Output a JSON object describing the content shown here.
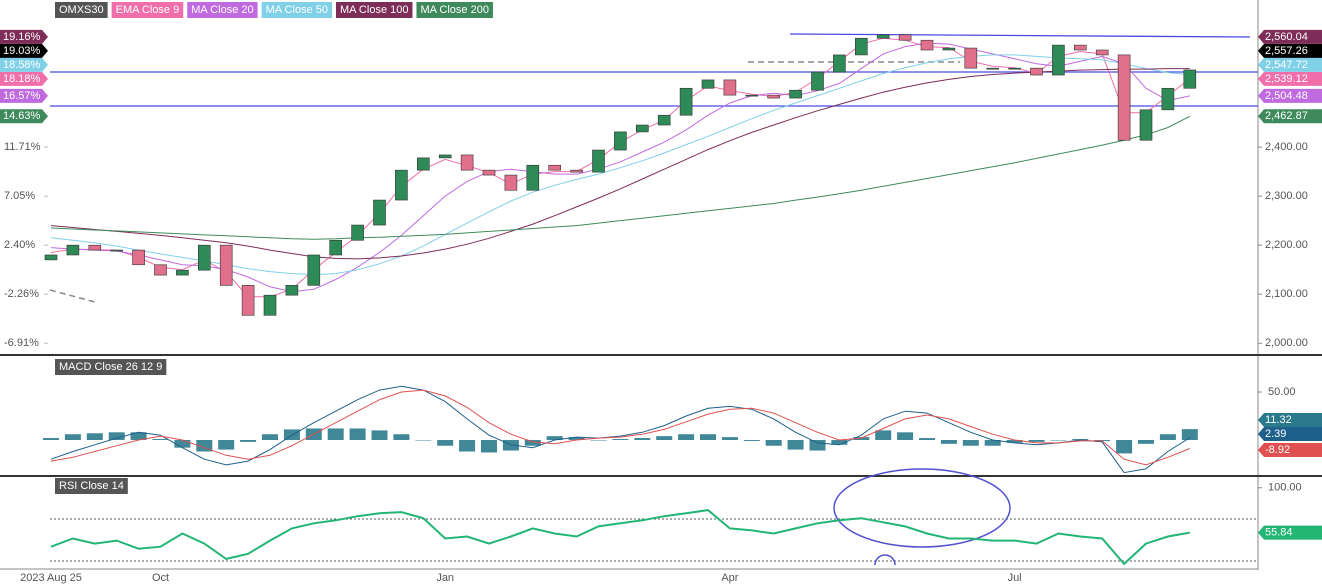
{
  "chart_data": [
    {
      "type": "candlestick",
      "name": "OMXS30",
      "categories": [
        "2023 Aug 25",
        null,
        null,
        null,
        null,
        "Oct",
        null,
        null,
        null,
        null,
        null,
        null,
        null,
        null,
        null,
        null,
        null,
        null,
        "Jan",
        null,
        null,
        null,
        null,
        null,
        null,
        null,
        null,
        null,
        null,
        null,
        null,
        "Apr",
        null,
        null,
        null,
        null,
        null,
        null,
        null,
        null,
        null,
        null,
        null,
        null,
        "Jul",
        null,
        null,
        null,
        null,
        null,
        null,
        null,
        null
      ],
      "open": [
        2170,
        2180,
        2200,
        2190,
        2190,
        2160,
        2139,
        2149,
        2200,
        2118,
        2057,
        2098,
        2118,
        2180,
        2210,
        2241,
        2292,
        2353,
        2378,
        2384,
        2353,
        2343,
        2312,
        2363,
        2353,
        2349,
        2394,
        2431,
        2445,
        2465,
        2520,
        2537,
        2506,
        2506,
        2500,
        2516,
        2553,
        2588,
        2622,
        2629,
        2618,
        2598,
        2602,
        2561,
        2561,
        2561,
        2547,
        2608,
        2598,
        2588,
        2414,
        2476,
        2520
      ],
      "close": [
        2180,
        2200,
        2190,
        2190,
        2160,
        2139,
        2149,
        2200,
        2118,
        2057,
        2098,
        2118,
        2180,
        2210,
        2241,
        2292,
        2353,
        2378,
        2384,
        2353,
        2343,
        2312,
        2363,
        2353,
        2349,
        2394,
        2431,
        2445,
        2465,
        2520,
        2537,
        2506,
        2506,
        2500,
        2516,
        2553,
        2588,
        2622,
        2629,
        2618,
        2598,
        2602,
        2561,
        2561,
        2561,
        2547,
        2608,
        2598,
        2588,
        2414,
        2476,
        2520,
        2557.26
      ],
      "up_color": "#2e8b57",
      "down_color": "#e0708c",
      "color": "#000000",
      "last_label": "2,557.26",
      "pct_label": "19.03%",
      "ylim": [
        1976,
        2700
      ],
      "yticks": [
        {
          "value": 2400,
          "label": "2,400.00"
        },
        {
          "value": 2300,
          "label": "2,300.00"
        },
        {
          "value": 2200,
          "label": "2,200.00"
        },
        {
          "value": 2100,
          "label": "2,100.00"
        },
        {
          "value": 2000,
          "label": "2,000.00"
        }
      ],
      "left_axis": {
        "lim": [
          -8.03,
          25.67
        ],
        "ticks": [
          {
            "value": 11.71,
            "label": "11.71%"
          },
          {
            "value": 7.05,
            "label": "7.05%"
          },
          {
            "value": 2.4,
            "label": "2.40%"
          },
          {
            "value": -2.26,
            "label": "-2.26%"
          },
          {
            "value": -6.91,
            "label": "-6.91%"
          }
        ]
      },
      "overlays": [
        {
          "name": "EMA Close 9",
          "color": "#f06ea9",
          "last_label": "2,539.12",
          "pct_label": "18.18%",
          "values": [
            2185,
            2192,
            2191,
            2190,
            2175,
            2155,
            2150,
            2170,
            2145,
            2095,
            2095,
            2110,
            2150,
            2185,
            2220,
            2265,
            2320,
            2355,
            2375,
            2362,
            2348,
            2325,
            2345,
            2350,
            2350,
            2375,
            2410,
            2435,
            2455,
            2495,
            2525,
            2515,
            2508,
            2503,
            2512,
            2540,
            2575,
            2610,
            2622,
            2618,
            2605,
            2603,
            2575,
            2565,
            2562,
            2550,
            2585,
            2595,
            2590,
            2470,
            2470,
            2505,
            2539.12
          ]
        },
        {
          "name": "MA Close 20",
          "color": "#c06ae0",
          "last_label": "2,504.48",
          "pct_label": "16.57%",
          "values": [
            2195,
            2192,
            2190,
            2188,
            2180,
            2170,
            2160,
            2158,
            2150,
            2135,
            2115,
            2105,
            2110,
            2130,
            2155,
            2185,
            2220,
            2260,
            2300,
            2330,
            2350,
            2355,
            2350,
            2345,
            2345,
            2355,
            2370,
            2390,
            2410,
            2435,
            2465,
            2490,
            2505,
            2510,
            2505,
            2515,
            2530,
            2560,
            2590,
            2605,
            2612,
            2610,
            2600,
            2590,
            2580,
            2570,
            2565,
            2575,
            2585,
            2570,
            2520,
            2495,
            2504.48
          ]
        },
        {
          "name": "MA Close 50",
          "color": "#80d0e8",
          "last_label": "2,547.72",
          "pct_label": "18.58%",
          "values": [
            2215,
            2210,
            2205,
            2198,
            2190,
            2182,
            2175,
            2168,
            2160,
            2152,
            2146,
            2142,
            2140,
            2142,
            2150,
            2162,
            2178,
            2198,
            2222,
            2245,
            2268,
            2290,
            2308,
            2322,
            2334,
            2345,
            2358,
            2372,
            2388,
            2405,
            2422,
            2440,
            2458,
            2475,
            2490,
            2505,
            2520,
            2535,
            2550,
            2562,
            2572,
            2580,
            2585,
            2588,
            2588,
            2585,
            2582,
            2580,
            2578,
            2570,
            2560,
            2552,
            2547.72
          ]
        },
        {
          "name": "MA Close 100",
          "color": "#7e2c58",
          "last_label": "2,560.04",
          "pct_label": "19.16%",
          "values": [
            2240,
            2236,
            2232,
            2228,
            2224,
            2220,
            2215,
            2210,
            2205,
            2198,
            2190,
            2183,
            2176,
            2173,
            2172,
            2174,
            2178,
            2184,
            2192,
            2202,
            2214,
            2228,
            2243,
            2260,
            2278,
            2296,
            2315,
            2335,
            2355,
            2375,
            2395,
            2413,
            2430,
            2445,
            2460,
            2474,
            2487,
            2500,
            2512,
            2522,
            2531,
            2538,
            2544,
            2548,
            2551,
            2553,
            2555,
            2557,
            2558,
            2559,
            2559,
            2560,
            2560.04
          ]
        },
        {
          "name": "MA Close 200",
          "color": "#3f8a5c",
          "last_label": "2,462.87",
          "pct_label": "14.63%",
          "values": [
            2235,
            2233,
            2231,
            2229,
            2227,
            2225,
            2223,
            2221,
            2219,
            2217,
            2215,
            2213,
            2212,
            2213,
            2215,
            2216,
            2218,
            2220,
            2222,
            2225,
            2228,
            2231,
            2234,
            2237,
            2240,
            2245,
            2250,
            2255,
            2260,
            2265,
            2270,
            2275,
            2280,
            2285,
            2292,
            2298,
            2305,
            2312,
            2320,
            2328,
            2336,
            2344,
            2352,
            2360,
            2368,
            2377,
            2386,
            2395,
            2404,
            2414,
            2425,
            2440,
            2462.87
          ]
        }
      ]
    },
    {
      "type": "macd",
      "title": "MACD Close 26 12 9",
      "ylim": [
        -36.5,
        86.5
      ],
      "yticks": [
        {
          "value": 50,
          "label": "50.00"
        }
      ],
      "histogram": {
        "color": "#2b7a8c",
        "values": [
          2,
          6,
          7,
          8,
          8,
          1,
          -8,
          -12,
          -10,
          -2,
          6,
          11,
          12,
          12,
          12,
          10,
          6,
          0,
          -6,
          -12,
          -13,
          -11,
          -6,
          4,
          3,
          0,
          1,
          2,
          4,
          6,
          6,
          3,
          -1,
          -6,
          -10,
          -11,
          -5,
          3,
          10,
          8,
          2,
          -4,
          -6,
          -6,
          -3,
          -2,
          0,
          1,
          -1,
          -14,
          -4,
          6,
          11.32
        ]
      },
      "series": [
        {
          "color": "#1f5f8b",
          "values": [
            -20,
            -12,
            -5,
            2,
            8,
            5,
            -8,
            -20,
            -26,
            -22,
            -10,
            5,
            18,
            30,
            42,
            52,
            56,
            52,
            40,
            22,
            5,
            -5,
            -8,
            0,
            3,
            2,
            4,
            8,
            15,
            25,
            33,
            35,
            32,
            22,
            8,
            -3,
            -5,
            5,
            22,
            30,
            28,
            18,
            8,
            0,
            -3,
            -5,
            -3,
            0,
            -2,
            -34,
            -30,
            -12,
            2.39
          ]
        },
        {
          "color": "#e05050",
          "values": [
            -22,
            -18,
            -12,
            -6,
            0,
            4,
            0,
            -8,
            -16,
            -20,
            -16,
            -6,
            6,
            18,
            30,
            42,
            50,
            52,
            46,
            34,
            18,
            6,
            -2,
            -4,
            0,
            2,
            3,
            6,
            11,
            19,
            27,
            32,
            33,
            28,
            18,
            8,
            0,
            2,
            12,
            22,
            26,
            22,
            14,
            6,
            0,
            -3,
            -3,
            -1,
            -1,
            -20,
            -26,
            -18,
            -8.92
          ]
        }
      ]
    },
    {
      "type": "rsi",
      "title": "RSI Close 14",
      "ylim": [
        21,
        110.6
      ],
      "yticks": [
        {
          "value": 100,
          "label": "100.00"
        }
      ],
      "color": "#22b573",
      "values": [
        42,
        50,
        45,
        48,
        40,
        42,
        55,
        45,
        30,
        35,
        48,
        60,
        65,
        68,
        72,
        75,
        76,
        70,
        50,
        52,
        45,
        52,
        60,
        55,
        52,
        62,
        65,
        68,
        72,
        75,
        78,
        60,
        58,
        55,
        60,
        65,
        68,
        70,
        66,
        62,
        55,
        50,
        50,
        48,
        48,
        45,
        55,
        52,
        50,
        25,
        45,
        52,
        55.84
      ]
    }
  ]
}
